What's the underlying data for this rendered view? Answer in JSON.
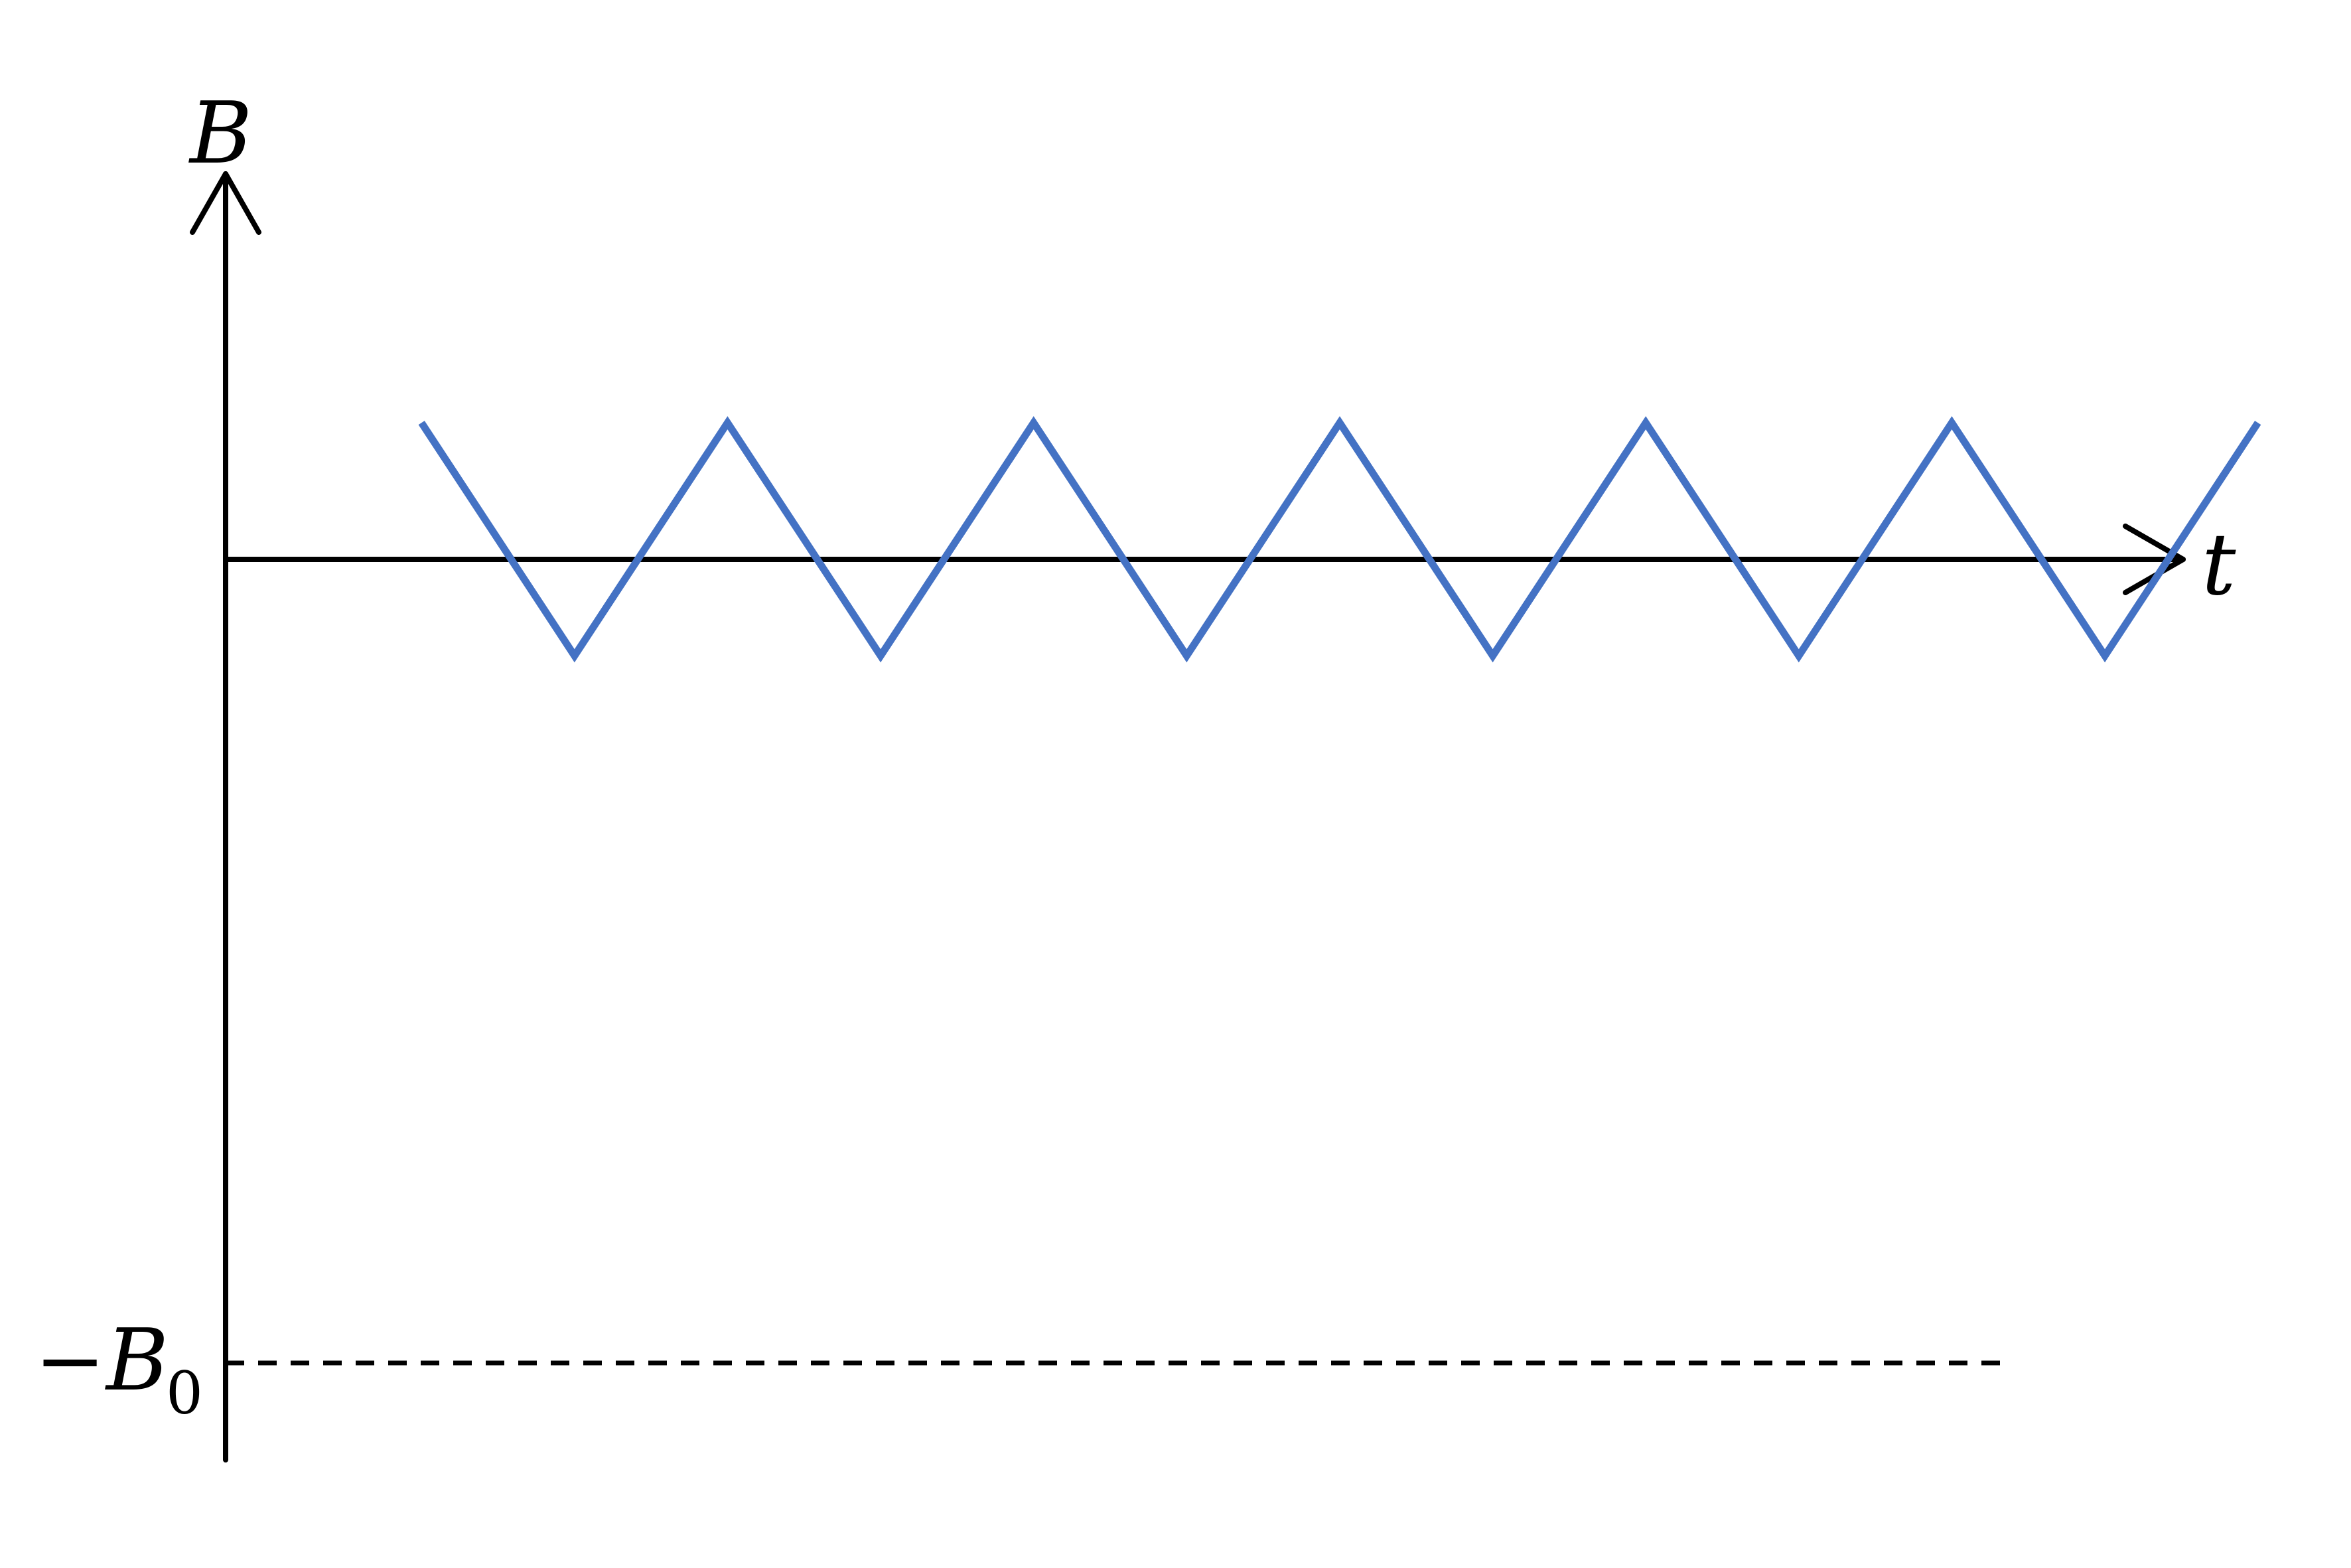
{
  "chart_data": {
    "type": "line",
    "title": "",
    "xlabel": "t",
    "ylabel": "B",
    "reference_line": {
      "label_sign": "−",
      "label_symbol": "B",
      "label_subscript": "0",
      "y": -1.0,
      "style": "dashed"
    },
    "ylim": [
      -1.1,
      0.5
    ],
    "xlim": [
      0,
      8
    ],
    "grid": false,
    "legend": "none",
    "series": [
      {
        "color": "#4472C4",
        "shape": "triangle wave",
        "x": [
          0.8,
          1.425,
          2.05,
          2.675,
          3.3,
          3.925,
          4.55,
          5.175,
          5.8,
          6.425,
          7.05,
          7.675,
          8.3
        ],
        "y": [
          0.17,
          -0.12,
          0.17,
          -0.12,
          0.17,
          -0.12,
          0.17,
          -0.12,
          0.17,
          -0.12,
          0.17,
          -0.12,
          0.17
        ]
      }
    ]
  }
}
